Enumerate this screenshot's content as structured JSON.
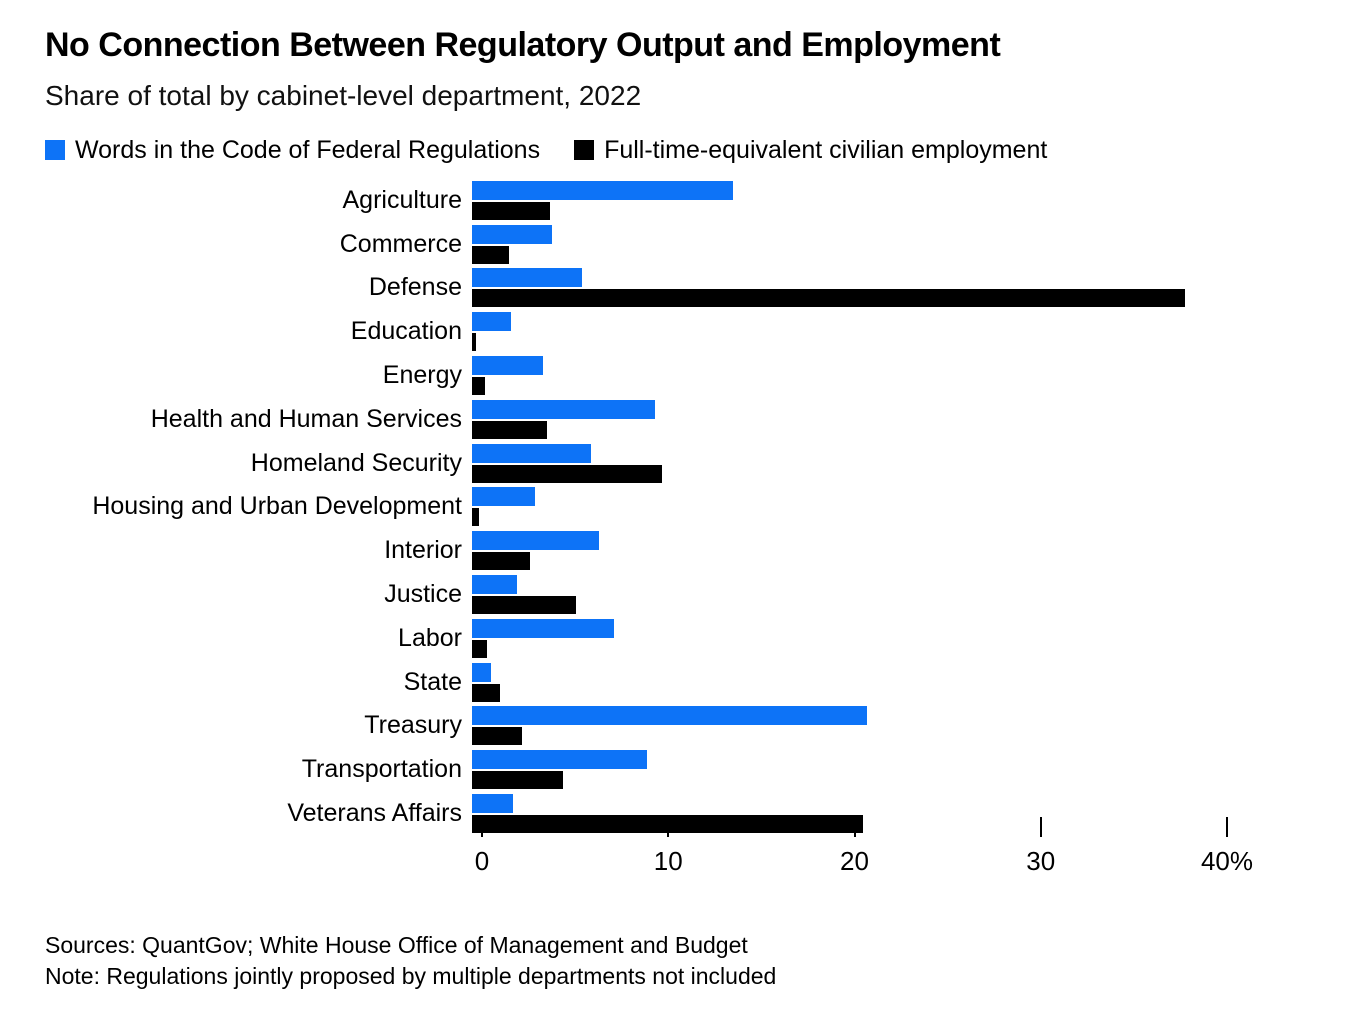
{
  "header": {
    "title": "No Connection Between Regulatory Output and Employment",
    "subtitle": "Share of total by cabinet-level department, 2022"
  },
  "footer": {
    "sources": "Sources: QuantGov; White House Office of Management and Budget",
    "note": "Note: Regulations jointly proposed by multiple departments not included"
  },
  "colors": {
    "words_blue": "#0d73f7",
    "employment_black": "#000000"
  },
  "chart_data": {
    "type": "bar",
    "orientation": "horizontal",
    "title": "No Connection Between Regulatory Output and Employment",
    "subtitle": "Share of total by cabinet-level department, 2022",
    "xlabel": "",
    "ylabel": "",
    "xlim": [
      0,
      40
    ],
    "xticks": [
      0,
      10,
      20,
      30,
      40
    ],
    "xtick_labels": [
      "0",
      "10",
      "20",
      "30",
      "40%"
    ],
    "grid": false,
    "legend_position": "top",
    "categories": [
      "Agriculture",
      "Commerce",
      "Defense",
      "Education",
      "Energy",
      "Health and Human Services",
      "Homeland Security",
      "Housing and Urban Development",
      "Interior",
      "Justice",
      "Labor",
      "State",
      "Treasury",
      "Transportation",
      "Veterans Affairs"
    ],
    "series": [
      {
        "name": "Words in the Code of Federal Regulations",
        "color": "#0d73f7",
        "values": [
          14.0,
          4.3,
          5.9,
          2.1,
          3.8,
          9.8,
          6.4,
          3.4,
          6.8,
          2.4,
          7.6,
          1.0,
          21.2,
          9.4,
          2.2
        ]
      },
      {
        "name": "Full-time-equivalent civilian employment",
        "color": "#000000",
        "values": [
          4.2,
          2.0,
          38.3,
          0.2,
          0.7,
          4.0,
          10.2,
          0.4,
          3.1,
          5.6,
          0.8,
          1.5,
          2.7,
          4.9,
          21.0
        ]
      }
    ]
  }
}
